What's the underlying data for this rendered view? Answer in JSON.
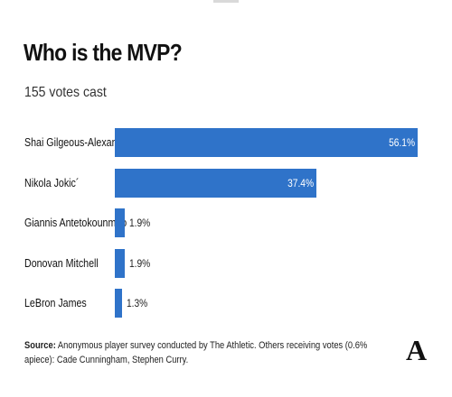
{
  "header": {
    "title": "Who is the MVP?",
    "subtitle": "155 votes cast"
  },
  "chart_data": {
    "type": "bar",
    "orientation": "horizontal",
    "categories": [
      "Shai Gilgeous-Alexander",
      "Nikola Jokic´",
      "Giannis Antetokounmpo",
      "Donovan Mitchell",
      "LeBron James"
    ],
    "values": [
      56.1,
      37.4,
      1.9,
      1.9,
      1.3
    ],
    "labels": [
      "56.1%",
      "37.4%",
      "1.9%",
      "1.9%",
      "1.3%"
    ],
    "unit": "%",
    "xlim": [
      0,
      56.1
    ],
    "bar_color": "#2f73c9",
    "grid": false,
    "legend": "none"
  },
  "footer": {
    "source_label": "Source:",
    "source_text": " Anonymous player survey conducted by The Athletic. Others receiving votes (0.6% apiece): Cade Cunningham, Stephen Curry.",
    "logo_text": "A"
  }
}
